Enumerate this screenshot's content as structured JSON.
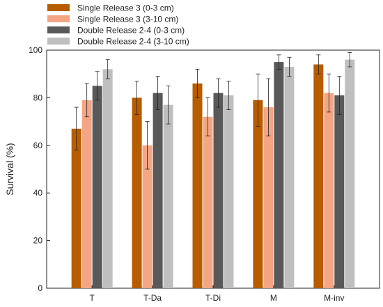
{
  "chart_data": {
    "type": "bar",
    "title": "",
    "xlabel": "",
    "ylabel": "Survival (%)",
    "ylim": [
      0,
      100
    ],
    "yticks": [
      0,
      20,
      40,
      60,
      80,
      100
    ],
    "grid": false,
    "legend_position": "top-left",
    "categories": [
      "T",
      "T-Da",
      "T-Di",
      "M",
      "M-inv"
    ],
    "series": [
      {
        "name": "Single Release 3 (0-3 cm)",
        "color": "#b85c00",
        "values": [
          67,
          80,
          86,
          79,
          94
        ],
        "errors": [
          9,
          7,
          6,
          11,
          4
        ]
      },
      {
        "name": "Single Release 3 (3-10 cm)",
        "color": "#f4a584",
        "values": [
          79,
          60,
          72,
          76,
          82
        ],
        "errors": [
          7,
          10,
          8,
          12,
          8
        ]
      },
      {
        "name": "Double Release 2-4 (0-3 cm)",
        "color": "#595959",
        "values": [
          85,
          82,
          82,
          95,
          81
        ],
        "errors": [
          6,
          7,
          6,
          3,
          8
        ]
      },
      {
        "name": "Double Release 2-4 (3-10 cm)",
        "color": "#bfbfbf",
        "values": [
          92,
          77,
          81,
          93,
          96
        ],
        "errors": [
          4,
          8,
          6,
          4,
          3
        ]
      }
    ]
  }
}
